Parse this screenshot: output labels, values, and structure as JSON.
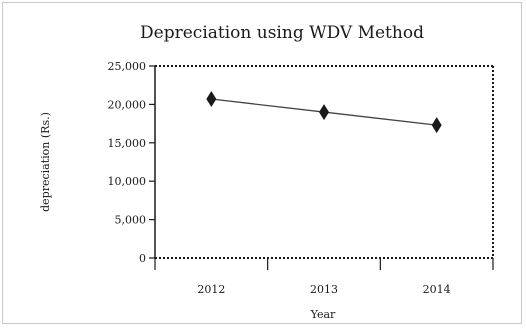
{
  "chart_data": {
    "type": "line",
    "title": "Depreciation using WDV Method",
    "xlabel": "Year",
    "ylabel": "depreciation (Rs.)",
    "categories": [
      "2012",
      "2013",
      "2014"
    ],
    "series": [
      {
        "values": [
          20700,
          19000,
          17300
        ]
      }
    ],
    "ylim": [
      0,
      25000
    ],
    "yticks": [
      "0",
      "5,000",
      "10,000",
      "15,000",
      "20,000",
      "25,000"
    ],
    "ytick_values": [
      0,
      5000,
      10000,
      15000,
      20000,
      25000
    ],
    "grid": false,
    "line_color": "#444444",
    "marker_color": "#1a1a1a",
    "marker": "diamond"
  }
}
